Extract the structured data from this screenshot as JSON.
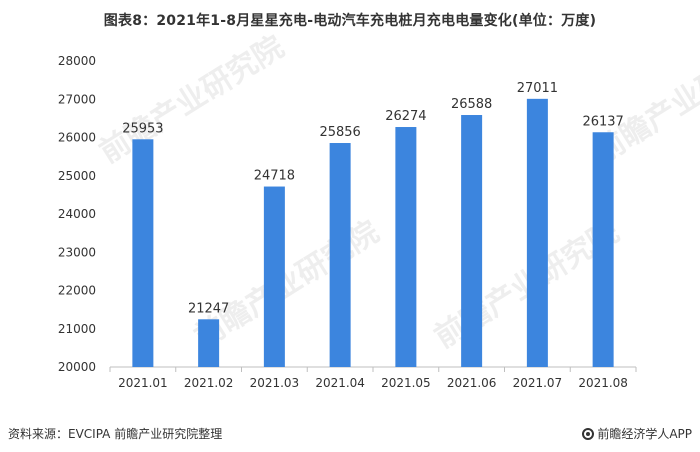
{
  "title": "图表8：2021年1-8月星星充电-电动汽车充电桩月充电电量变化(单位：万度)",
  "watermark_text": "前瞻产业研究院",
  "footer": {
    "source": "资料来源：EVCIPA 前瞻产业研究院整理",
    "brand": "前瞻经济学人APP"
  },
  "chart_data": {
    "type": "bar",
    "title": "图表8：2021年1-8月星星充电-电动汽车充电桩月充电电量变化(单位：万度)",
    "categories": [
      "2021.01",
      "2021.02",
      "2021.03",
      "2021.04",
      "2021.05",
      "2021.06",
      "2021.07",
      "2021.08"
    ],
    "values": [
      25953,
      21247,
      24718,
      25856,
      26274,
      26588,
      27011,
      26137
    ],
    "yticks": [
      20000,
      21000,
      22000,
      23000,
      24000,
      25000,
      26000,
      27000,
      28000
    ],
    "ylim": [
      20000,
      28000
    ],
    "bar_color": "#3C85DE",
    "grid": false,
    "data_labels": true
  }
}
